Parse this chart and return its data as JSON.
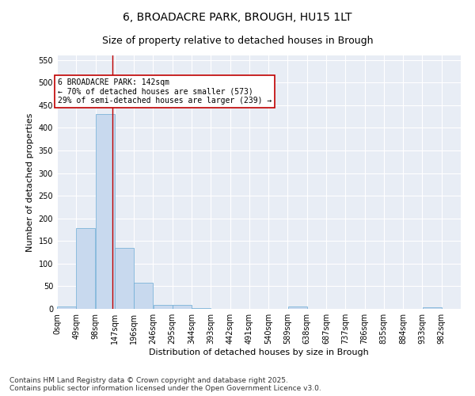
{
  "title": "6, BROADACRE PARK, BROUGH, HU15 1LT",
  "subtitle": "Size of property relative to detached houses in Brough",
  "xlabel": "Distribution of detached houses by size in Brough",
  "ylabel": "Number of detached properties",
  "bar_color": "#c8d9ee",
  "bar_edge_color": "#6aaad4",
  "background_color": "#e8edf5",
  "grid_color": "#ffffff",
  "bins": [
    0,
    49,
    98,
    147,
    196,
    245,
    294,
    343,
    392,
    441,
    490,
    539,
    588,
    637,
    686,
    735,
    784,
    833,
    882,
    931,
    980
  ],
  "bin_labels": [
    "0sqm",
    "49sqm",
    "98sqm",
    "147sqm",
    "196sqm",
    "246sqm",
    "295sqm",
    "344sqm",
    "393sqm",
    "442sqm",
    "491sqm",
    "540sqm",
    "589sqm",
    "638sqm",
    "687sqm",
    "737sqm",
    "786sqm",
    "835sqm",
    "884sqm",
    "933sqm",
    "982sqm"
  ],
  "values": [
    5,
    178,
    430,
    135,
    58,
    8,
    8,
    2,
    0,
    0,
    0,
    0,
    5,
    0,
    0,
    0,
    0,
    0,
    0,
    3
  ],
  "ylim": [
    0,
    560
  ],
  "yticks": [
    0,
    50,
    100,
    150,
    200,
    250,
    300,
    350,
    400,
    450,
    500,
    550
  ],
  "vline_x": 142,
  "vline_color": "#c00000",
  "annotation_line1": "6 BROADACRE PARK: 142sqm",
  "annotation_line2": "← 70% of detached houses are smaller (573)",
  "annotation_line3": "29% of semi-detached houses are larger (239) →",
  "annotation_box_color": "#c00000",
  "footnote": "Contains HM Land Registry data © Crown copyright and database right 2025.\nContains public sector information licensed under the Open Government Licence v3.0.",
  "title_fontsize": 10,
  "subtitle_fontsize": 9,
  "axis_label_fontsize": 8,
  "tick_fontsize": 7,
  "annotation_fontsize": 7,
  "footnote_fontsize": 6.5
}
